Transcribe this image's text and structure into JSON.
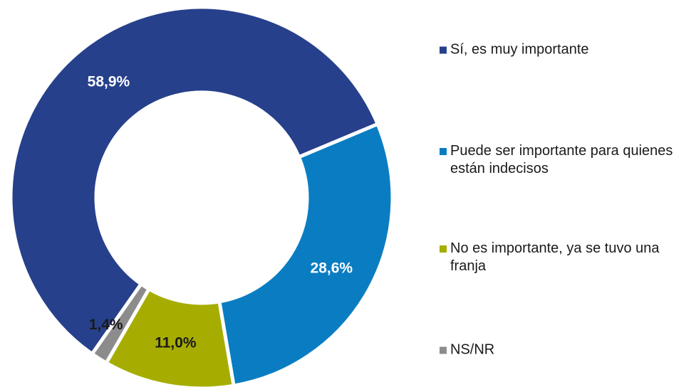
{
  "chart_data": {
    "type": "donut",
    "categories": [
      "Sí, es muy importante",
      "Puede ser importante para quienes están indecisos",
      "No es importante, ya se tuvo una franja",
      "NS/NR"
    ],
    "values": [
      58.9,
      28.6,
      11.0,
      1.4
    ],
    "value_labels": [
      "58,9%",
      "28,6%",
      "11,0%",
      "1,4%"
    ],
    "colors": [
      "#27408b",
      "#0a7dc2",
      "#a6ad00",
      "#8c8c8c"
    ],
    "label_colors": [
      "#ffffff",
      "#ffffff",
      "#1a1a1a",
      "#1a1a1a"
    ],
    "legend": "right"
  }
}
